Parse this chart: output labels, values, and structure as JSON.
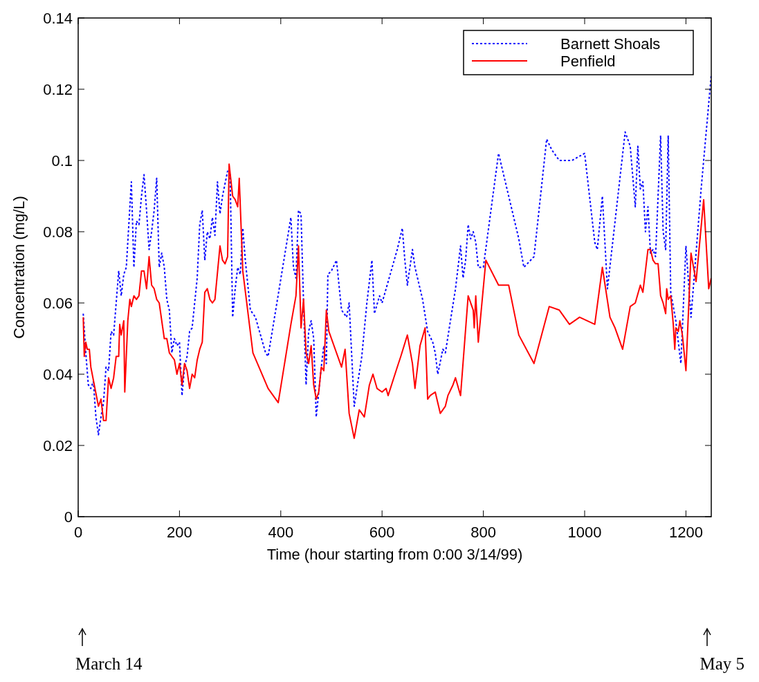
{
  "chart_data": {
    "type": "line",
    "xlabel": "Time (hour starting from 0:00 3/14/99)",
    "ylabel": "Concentration (mg/L)",
    "xlim": [
      0,
      1250
    ],
    "xticks": [
      0,
      200,
      400,
      600,
      800,
      1000,
      1200
    ],
    "ylim": [
      0,
      0.14
    ],
    "yticks": [
      0,
      0.02,
      0.04,
      0.06,
      0.08,
      0.1,
      0.12,
      0.14
    ],
    "grid": false,
    "legend": "top right",
    "marker": "none",
    "annotations": [
      "March 14",
      "May 5"
    ],
    "series": [
      {
        "name": "Barnett Shoals",
        "color": "#0000ff",
        "line_style": "dotted",
        "x": [
          10,
          15,
          20,
          25,
          30,
          35,
          40,
          45,
          50,
          55,
          60,
          65,
          70,
          75,
          80,
          85,
          90,
          95,
          100,
          105,
          110,
          115,
          120,
          125,
          130,
          135,
          140,
          145,
          150,
          155,
          160,
          165,
          170,
          175,
          180,
          185,
          190,
          195,
          200,
          205,
          210,
          215,
          220,
          225,
          235,
          240,
          245,
          250,
          255,
          260,
          265,
          270,
          275,
          280,
          285,
          295,
          300,
          305,
          310,
          315,
          320,
          325,
          330,
          340,
          350,
          370,
          375,
          420,
          425,
          430,
          435,
          440,
          445,
          450,
          455,
          460,
          465,
          470,
          480,
          485,
          490,
          493,
          500,
          510,
          520,
          525,
          530,
          535,
          545,
          560,
          570,
          580,
          585,
          595,
          600,
          610,
          630,
          640,
          645,
          650,
          660,
          665,
          680,
          690,
          700,
          705,
          710,
          720,
          725,
          745,
          755,
          760,
          765,
          770,
          775,
          780,
          785,
          790,
          800,
          830,
          850,
          870,
          880,
          900,
          925,
          935,
          950,
          975,
          1000,
          1020,
          1025,
          1035,
          1045,
          1080,
          1090,
          1100,
          1105,
          1110,
          1115,
          1120,
          1125,
          1130,
          1135,
          1140,
          1150,
          1155,
          1160,
          1165,
          1170,
          1180,
          1190,
          1200,
          1210,
          1230,
          1250
        ],
        "values": [
          0.057,
          0.046,
          0.037,
          0.036,
          0.038,
          0.028,
          0.023,
          0.028,
          0.032,
          0.042,
          0.041,
          0.052,
          0.051,
          0.06,
          0.069,
          0.062,
          0.068,
          0.07,
          0.082,
          0.094,
          0.07,
          0.083,
          0.082,
          0.09,
          0.096,
          0.086,
          0.075,
          0.08,
          0.086,
          0.095,
          0.07,
          0.074,
          0.07,
          0.061,
          0.058,
          0.046,
          0.05,
          0.048,
          0.049,
          0.034,
          0.042,
          0.045,
          0.052,
          0.053,
          0.067,
          0.082,
          0.086,
          0.072,
          0.08,
          0.078,
          0.084,
          0.079,
          0.094,
          0.085,
          0.09,
          0.097,
          0.096,
          0.056,
          0.064,
          0.07,
          0.068,
          0.081,
          0.072,
          0.058,
          0.056,
          0.046,
          0.045,
          0.084,
          0.07,
          0.067,
          0.086,
          0.085,
          0.06,
          0.037,
          0.052,
          0.055,
          0.05,
          0.028,
          0.042,
          0.048,
          0.043,
          0.068,
          0.069,
          0.072,
          0.058,
          0.057,
          0.056,
          0.06,
          0.031,
          0.045,
          0.06,
          0.072,
          0.057,
          0.062,
          0.06,
          0.065,
          0.075,
          0.081,
          0.072,
          0.065,
          0.075,
          0.07,
          0.061,
          0.052,
          0.049,
          0.046,
          0.04,
          0.047,
          0.046,
          0.064,
          0.076,
          0.067,
          0.072,
          0.082,
          0.078,
          0.08,
          0.077,
          0.07,
          0.07,
          0.102,
          0.09,
          0.078,
          0.07,
          0.073,
          0.106,
          0.103,
          0.1,
          0.1,
          0.102,
          0.077,
          0.075,
          0.09,
          0.064,
          0.108,
          0.104,
          0.087,
          0.104,
          0.092,
          0.094,
          0.08,
          0.087,
          0.074,
          0.075,
          0.073,
          0.107,
          0.08,
          0.075,
          0.107,
          0.063,
          0.055,
          0.043,
          0.076,
          0.056,
          0.092,
          0.124
        ]
      },
      {
        "name": "Penfield",
        "color": "#ff0000",
        "line_style": "solid",
        "x": [
          10,
          12,
          15,
          18,
          22,
          25,
          40,
          45,
          50,
          55,
          60,
          65,
          70,
          75,
          80,
          82,
          85,
          90,
          92,
          98,
          102,
          105,
          110,
          115,
          120,
          125,
          130,
          135,
          140,
          145,
          150,
          155,
          160,
          165,
          170,
          175,
          180,
          185,
          190,
          195,
          200,
          205,
          210,
          215,
          220,
          225,
          230,
          235,
          240,
          245,
          250,
          255,
          260,
          265,
          270,
          280,
          285,
          290,
          295,
          298,
          305,
          310,
          315,
          318,
          325,
          345,
          375,
          395,
          420,
          430,
          435,
          440,
          445,
          450,
          455,
          460,
          465,
          470,
          475,
          480,
          485,
          490,
          495,
          520,
          527,
          535,
          545,
          555,
          565,
          575,
          582,
          590,
          600,
          608,
          612,
          630,
          637,
          650,
          660,
          665,
          675,
          685,
          690,
          695,
          705,
          710,
          715,
          725,
          730,
          740,
          745,
          755,
          770,
          780,
          782,
          785,
          790,
          805,
          830,
          850,
          870,
          900,
          930,
          950,
          970,
          990,
          1020,
          1035,
          1050,
          1060,
          1075,
          1090,
          1100,
          1110,
          1115,
          1125,
          1130,
          1135,
          1140,
          1145,
          1150,
          1155,
          1160,
          1162,
          1165,
          1170,
          1175,
          1178,
          1180,
          1185,
          1188,
          1193,
          1200,
          1210,
          1220,
          1235,
          1245,
          1250
        ],
        "values": [
          0.056,
          0.045,
          0.049,
          0.047,
          0.047,
          0.042,
          0.031,
          0.033,
          0.027,
          0.027,
          0.039,
          0.036,
          0.039,
          0.045,
          0.045,
          0.054,
          0.051,
          0.055,
          0.035,
          0.055,
          0.061,
          0.059,
          0.062,
          0.061,
          0.062,
          0.069,
          0.069,
          0.064,
          0.073,
          0.065,
          0.064,
          0.061,
          0.06,
          0.055,
          0.05,
          0.05,
          0.046,
          0.045,
          0.044,
          0.04,
          0.043,
          0.037,
          0.043,
          0.041,
          0.036,
          0.04,
          0.039,
          0.044,
          0.047,
          0.049,
          0.063,
          0.064,
          0.061,
          0.06,
          0.061,
          0.076,
          0.072,
          0.071,
          0.073,
          0.099,
          0.09,
          0.089,
          0.087,
          0.095,
          0.069,
          0.046,
          0.036,
          0.032,
          0.054,
          0.062,
          0.076,
          0.053,
          0.061,
          0.046,
          0.043,
          0.048,
          0.037,
          0.033,
          0.035,
          0.042,
          0.041,
          0.058,
          0.052,
          0.042,
          0.047,
          0.029,
          0.022,
          0.03,
          0.028,
          0.037,
          0.04,
          0.036,
          0.035,
          0.036,
          0.034,
          0.042,
          0.045,
          0.051,
          0.043,
          0.036,
          0.048,
          0.053,
          0.033,
          0.034,
          0.035,
          0.032,
          0.029,
          0.031,
          0.034,
          0.037,
          0.039,
          0.034,
          0.062,
          0.058,
          0.053,
          0.062,
          0.049,
          0.072,
          0.065,
          0.065,
          0.051,
          0.043,
          0.059,
          0.058,
          0.054,
          0.056,
          0.054,
          0.07,
          0.056,
          0.053,
          0.047,
          0.059,
          0.06,
          0.065,
          0.063,
          0.075,
          0.075,
          0.072,
          0.071,
          0.071,
          0.062,
          0.06,
          0.057,
          0.064,
          0.061,
          0.062,
          0.054,
          0.047,
          0.053,
          0.052,
          0.055,
          0.051,
          0.041,
          0.074,
          0.066,
          0.089,
          0.064,
          0.067
        ]
      }
    ]
  }
}
